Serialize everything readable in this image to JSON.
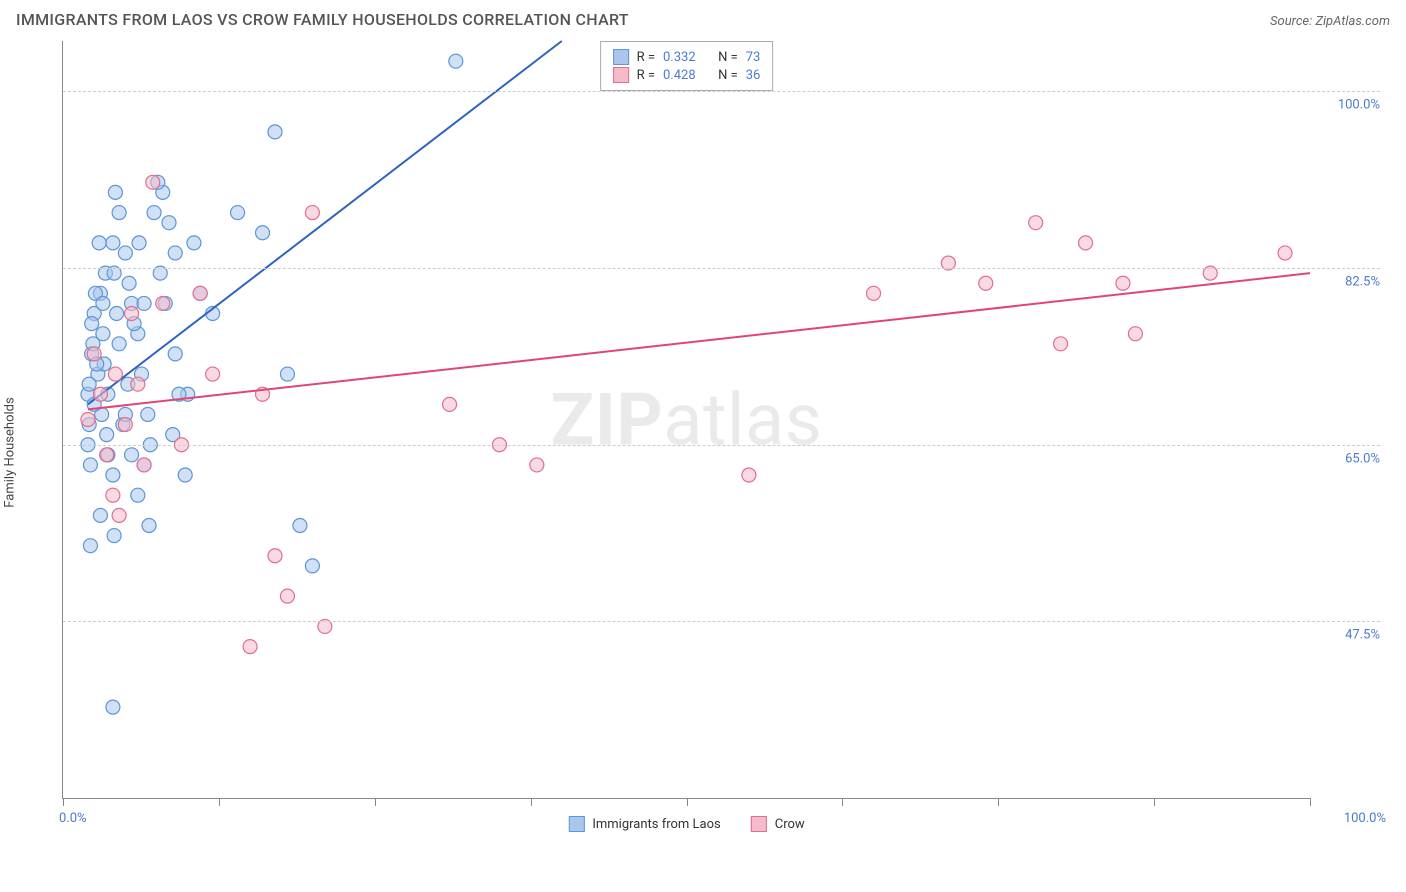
{
  "header": {
    "title": "IMMIGRANTS FROM LAOS VS CROW FAMILY HOUSEHOLDS CORRELATION CHART",
    "source_prefix": "Source: ",
    "source_name": "ZipAtlas.com"
  },
  "chart": {
    "type": "scatter",
    "ylabel": "Family Households",
    "watermark_bold": "ZIP",
    "watermark_rest": "atlas",
    "xlim": [
      0,
      100
    ],
    "ylim": [
      30,
      105
    ],
    "x_tick_positions": [
      0,
      12.5,
      25,
      37.5,
      50,
      62.5,
      75,
      87.5,
      100
    ],
    "x_min_label": "0.0%",
    "x_max_label": "100.0%",
    "y_grid": [
      {
        "value": 47.5,
        "label": "47.5%"
      },
      {
        "value": 65.0,
        "label": "65.0%"
      },
      {
        "value": 82.5,
        "label": "82.5%"
      },
      {
        "value": 100.0,
        "label": "100.0%"
      }
    ],
    "background_color": "#ffffff",
    "grid_color": "#cccccc",
    "axis_color": "#888888",
    "marker_radius": 7,
    "marker_stroke_width": 1.2,
    "trend_line_width": 2,
    "series": [
      {
        "key": "laos",
        "label": "Immigrants from Laos",
        "fill": "#a9c7ec",
        "stroke": "#5e95d6",
        "line_color": "#2f63c0",
        "fill_opacity": 0.55,
        "R": "0.332",
        "N": "73",
        "trend": {
          "x1": 2,
          "y1": 69,
          "x2": 40,
          "y2": 105
        },
        "points": [
          [
            2,
            70
          ],
          [
            2.3,
            74
          ],
          [
            2.1,
            67
          ],
          [
            2.5,
            78
          ],
          [
            2.8,
            72
          ],
          [
            3,
            80
          ],
          [
            3.2,
            76
          ],
          [
            3.4,
            82
          ],
          [
            3.6,
            70
          ],
          [
            4,
            85
          ],
          [
            4.2,
            90
          ],
          [
            4.5,
            88
          ],
          [
            5,
            84
          ],
          [
            5.5,
            79
          ],
          [
            6,
            76
          ],
          [
            6.3,
            72
          ],
          [
            6.8,
            68
          ],
          [
            7,
            65
          ],
          [
            7.8,
            82
          ],
          [
            8,
            90
          ],
          [
            8.5,
            87
          ],
          [
            9,
            74
          ],
          [
            10,
            70
          ],
          [
            10.5,
            85
          ],
          [
            11,
            80
          ],
          [
            12,
            78
          ],
          [
            14,
            88
          ],
          [
            16,
            86
          ],
          [
            17,
            96
          ],
          [
            18,
            72
          ],
          [
            19,
            57
          ],
          [
            20,
            53
          ],
          [
            4,
            62
          ],
          [
            4.3,
            78
          ],
          [
            4.8,
            67
          ],
          [
            5.2,
            71
          ],
          [
            5.5,
            64
          ],
          [
            6,
            60
          ],
          [
            2,
            65
          ],
          [
            2.2,
            63
          ],
          [
            2.4,
            75
          ],
          [
            2.6,
            80
          ],
          [
            2.9,
            85
          ],
          [
            3.1,
            68
          ],
          [
            3.3,
            73
          ],
          [
            3.5,
            66
          ],
          [
            6.5,
            63
          ],
          [
            6.9,
            57
          ],
          [
            4.1,
            56
          ],
          [
            2.2,
            55
          ],
          [
            3,
            58
          ],
          [
            4,
            39
          ],
          [
            31.5,
            103
          ],
          [
            7.3,
            88
          ],
          [
            7.6,
            91
          ],
          [
            8.2,
            79
          ],
          [
            8.8,
            66
          ],
          [
            9.3,
            70
          ],
          [
            9.8,
            62
          ],
          [
            2.1,
            71
          ],
          [
            2.3,
            77
          ],
          [
            2.5,
            69
          ],
          [
            2.7,
            73
          ],
          [
            3.2,
            79
          ],
          [
            3.6,
            64
          ],
          [
            4.1,
            82
          ],
          [
            4.5,
            75
          ],
          [
            5,
            68
          ],
          [
            5.3,
            81
          ],
          [
            5.7,
            77
          ],
          [
            6.1,
            85
          ],
          [
            6.5,
            79
          ],
          [
            9,
            84
          ]
        ]
      },
      {
        "key": "crow",
        "label": "Crow",
        "fill": "#f4bccb",
        "stroke": "#e26e8f",
        "line_color": "#e04579",
        "fill_opacity": 0.55,
        "R": "0.428",
        "N": "36",
        "trend": {
          "x1": 2,
          "y1": 68.5,
          "x2": 100,
          "y2": 82
        },
        "points": [
          [
            2,
            67.5
          ],
          [
            2.5,
            74
          ],
          [
            3,
            70
          ],
          [
            3.5,
            64
          ],
          [
            4,
            60
          ],
          [
            4.2,
            72
          ],
          [
            5,
            67
          ],
          [
            5.5,
            78
          ],
          [
            6.5,
            63
          ],
          [
            8,
            79
          ],
          [
            11,
            80
          ],
          [
            12,
            72
          ],
          [
            15,
            45
          ],
          [
            16,
            70
          ],
          [
            17,
            54
          ],
          [
            18,
            50
          ],
          [
            20,
            88
          ],
          [
            21,
            47
          ],
          [
            31,
            69
          ],
          [
            35,
            65
          ],
          [
            38,
            63
          ],
          [
            55,
            62
          ],
          [
            65,
            80
          ],
          [
            71,
            83
          ],
          [
            74,
            81
          ],
          [
            78,
            87
          ],
          [
            80,
            75
          ],
          [
            82,
            85
          ],
          [
            85,
            81
          ],
          [
            86,
            76
          ],
          [
            92,
            82
          ],
          [
            98,
            84
          ],
          [
            9.5,
            65
          ],
          [
            7.2,
            91
          ],
          [
            6,
            71
          ],
          [
            4.5,
            58
          ]
        ]
      }
    ]
  }
}
